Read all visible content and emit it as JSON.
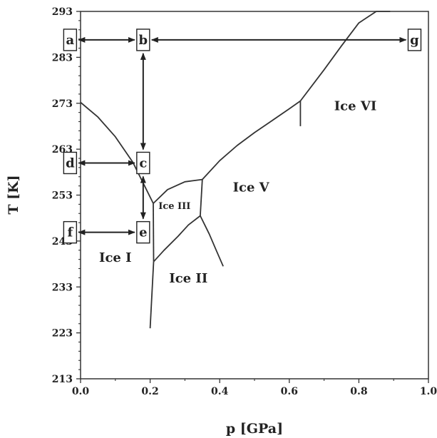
{
  "chart_data": {
    "type": "line",
    "title": "",
    "xlabel": "p [GPa]",
    "ylabel": "T [K]",
    "xlim": [
      0.0,
      1.0
    ],
    "ylim": [
      213,
      293
    ],
    "x_ticks": [
      "0.0",
      "0.2",
      "0.4",
      "0.6",
      "0.8",
      "1.0"
    ],
    "y_ticks": [
      "213",
      "223",
      "233",
      "243",
      "253",
      "263",
      "273",
      "283",
      "293"
    ],
    "grid": false,
    "legend": "none",
    "line_color": "#333333",
    "boundaries": [
      {
        "id": "ice-i-liquid",
        "x": [
          0.0,
          0.05,
          0.1,
          0.15,
          0.209
        ],
        "y": [
          273.2,
          270.0,
          265.7,
          260.2,
          251.2
        ]
      },
      {
        "id": "ice-iii-liquid",
        "x": [
          0.209,
          0.25,
          0.3,
          0.35
        ],
        "y": [
          251.2,
          254.2,
          255.9,
          256.4
        ]
      },
      {
        "id": "ice-v-liquid",
        "x": [
          0.35,
          0.4,
          0.45,
          0.5,
          0.55,
          0.6,
          0.632
        ],
        "y": [
          256.4,
          260.5,
          263.8,
          266.6,
          269.2,
          271.8,
          273.5
        ]
      },
      {
        "id": "ice-vi-liquid",
        "x": [
          0.632,
          0.7,
          0.75,
          0.8,
          0.85,
          0.89
        ],
        "y": [
          273.5,
          280.3,
          285.5,
          290.5,
          294.5,
          297.0
        ]
      },
      {
        "id": "ice-i-iii",
        "x": [
          0.209,
          0.21
        ],
        "y": [
          251.2,
          238.5
        ]
      },
      {
        "id": "ice-i-ii",
        "x": [
          0.21,
          0.2
        ],
        "y": [
          238.5,
          224.0
        ]
      },
      {
        "id": "ice-iii-ii",
        "x": [
          0.21,
          0.24,
          0.28,
          0.31,
          0.344
        ],
        "y": [
          238.5,
          241.0,
          244.0,
          246.5,
          248.5
        ]
      },
      {
        "id": "ice-iii-v",
        "x": [
          0.35,
          0.344
        ],
        "y": [
          256.4,
          248.5
        ]
      },
      {
        "id": "ice-ii-v",
        "x": [
          0.344,
          0.37,
          0.39,
          0.41
        ],
        "y": [
          248.5,
          244.5,
          241.0,
          237.5
        ]
      },
      {
        "id": "ice-v-vi",
        "x": [
          0.632,
          0.632
        ],
        "y": [
          273.5,
          268.0
        ]
      }
    ],
    "phase_labels": [
      {
        "text": "Ice I",
        "x": 0.1,
        "y": 238.5,
        "size": "large"
      },
      {
        "text": "Ice II",
        "x": 0.31,
        "y": 234.0,
        "size": "large"
      },
      {
        "text": "Ice III",
        "x": 0.27,
        "y": 250.0,
        "size": "small"
      },
      {
        "text": "Ice V",
        "x": 0.49,
        "y": 253.8,
        "size": "large"
      },
      {
        "text": "Ice VI",
        "x": 0.79,
        "y": 271.5,
        "size": "large"
      }
    ],
    "state_points": [
      {
        "label": "a",
        "x": -0.03,
        "y": 286.8
      },
      {
        "label": "b",
        "x": 0.18,
        "y": 286.8
      },
      {
        "label": "g",
        "x": 0.96,
        "y": 286.8
      },
      {
        "label": "c",
        "x": 0.18,
        "y": 260.0
      },
      {
        "label": "d",
        "x": -0.03,
        "y": 260.0
      },
      {
        "label": "e",
        "x": 0.18,
        "y": 244.9
      },
      {
        "label": "f",
        "x": -0.03,
        "y": 244.9
      }
    ],
    "arrows": [
      {
        "from": "a",
        "to": "b",
        "double": true
      },
      {
        "from": "b",
        "to": "g",
        "double": true
      },
      {
        "from": "b",
        "to": "c",
        "double": true
      },
      {
        "from": "d",
        "to": "c",
        "double": true
      },
      {
        "from": "c",
        "to": "e",
        "double": true
      },
      {
        "from": "f",
        "to": "e",
        "double": true
      }
    ]
  }
}
